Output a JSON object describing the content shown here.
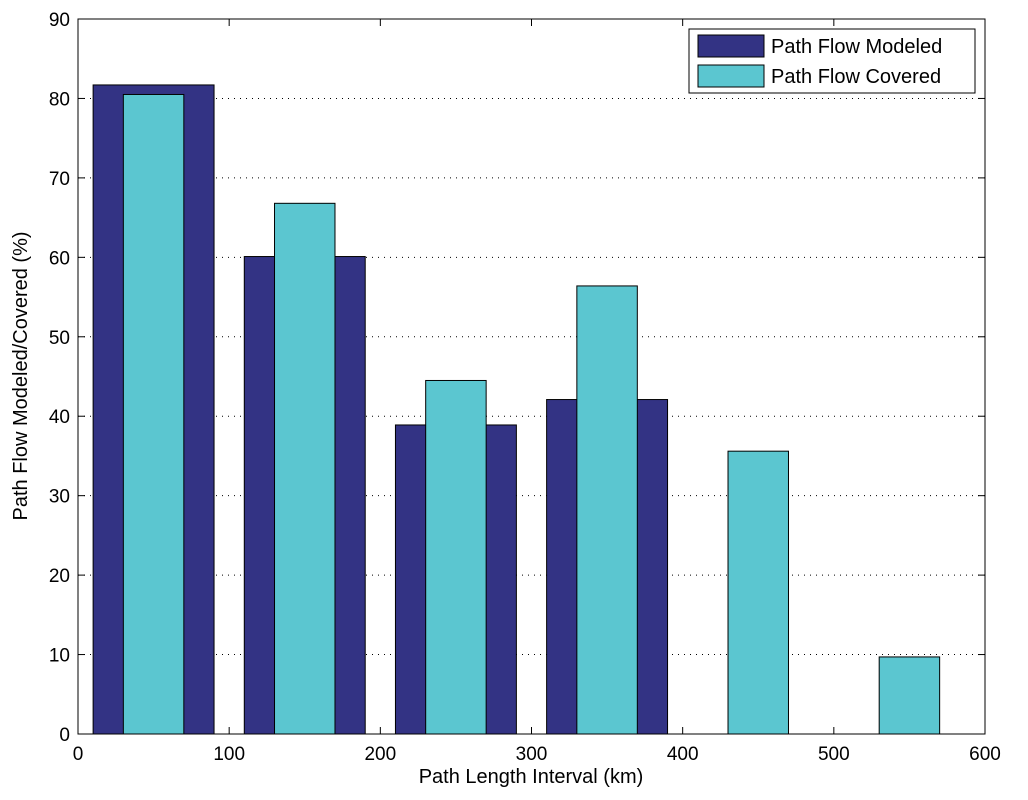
{
  "chart_data": {
    "type": "bar",
    "title": "",
    "xlabel": "Path Length Interval (km)",
    "ylabel": "Path Flow Modeled/Covered (%)",
    "xlim": [
      0,
      600
    ],
    "ylim": [
      0,
      90
    ],
    "xticks": [
      0,
      100,
      200,
      300,
      400,
      500,
      600
    ],
    "yticks": [
      0,
      10,
      20,
      30,
      40,
      50,
      60,
      70,
      80,
      90
    ],
    "grid": "horizontal dotted",
    "legend_position": "top-right",
    "categories": [
      50,
      150,
      250,
      350,
      450,
      550
    ],
    "series": [
      {
        "name": "Path Flow Modeled",
        "color": "#333384",
        "bar_width": 80,
        "values": [
          81.7,
          60.1,
          38.9,
          42.1,
          0,
          0
        ]
      },
      {
        "name": "Path Flow Covered",
        "color": "#5BC6D0",
        "bar_width": 40,
        "values": [
          80.5,
          66.8,
          44.5,
          56.4,
          35.6,
          9.7
        ]
      }
    ]
  }
}
